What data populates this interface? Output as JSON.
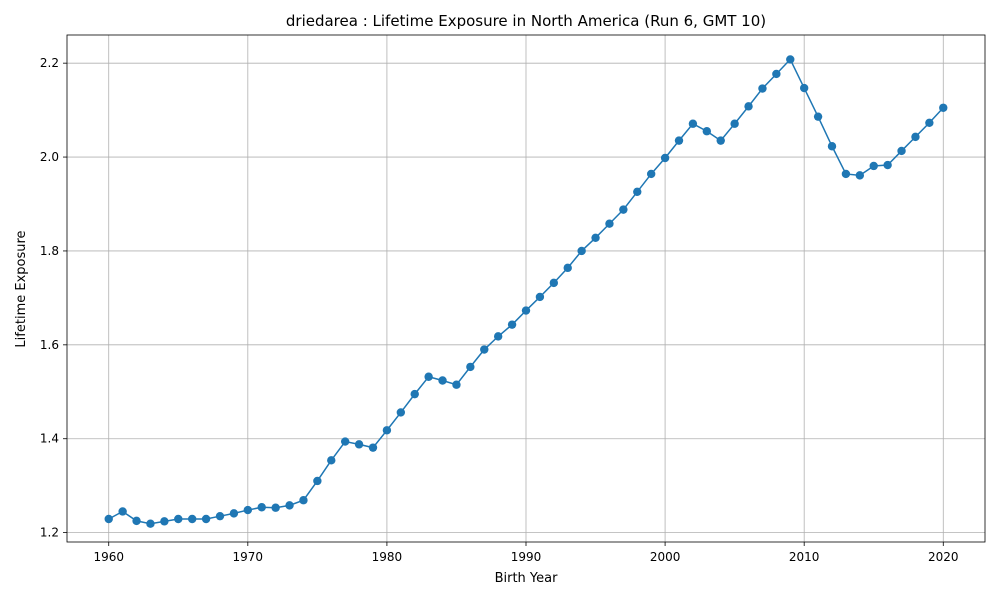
{
  "chart_data": {
    "type": "line",
    "title": "driedarea : Lifetime Exposure in North America (Run 6, GMT 10)",
    "xlabel": "Birth Year",
    "ylabel": "Lifetime Exposure",
    "xlim": [
      1957,
      2023
    ],
    "ylim": [
      1.18,
      2.26
    ],
    "xticks": [
      1960,
      1970,
      1980,
      1990,
      2000,
      2010,
      2020
    ],
    "yticks": [
      1.2,
      1.4,
      1.6,
      1.8,
      2.0,
      2.2
    ],
    "ytick_labels": [
      "1.2",
      "1.4",
      "1.6",
      "1.8",
      "2.0",
      "2.2"
    ],
    "grid": true,
    "color": "#1f77b4",
    "marker": "circle",
    "x": [
      1960,
      1961,
      1962,
      1963,
      1964,
      1965,
      1966,
      1967,
      1968,
      1969,
      1970,
      1971,
      1972,
      1973,
      1974,
      1975,
      1976,
      1977,
      1978,
      1979,
      1980,
      1981,
      1982,
      1983,
      1984,
      1985,
      1986,
      1987,
      1988,
      1989,
      1990,
      1991,
      1992,
      1993,
      1994,
      1995,
      1996,
      1997,
      1998,
      1999,
      2000,
      2001,
      2002,
      2003,
      2004,
      2005,
      2006,
      2007,
      2008,
      2009,
      2010,
      2011,
      2012,
      2013,
      2014,
      2015,
      2016,
      2017,
      2018,
      2019,
      2020
    ],
    "y": [
      1.229,
      1.245,
      1.225,
      1.219,
      1.224,
      1.229,
      1.229,
      1.229,
      1.235,
      1.241,
      1.248,
      1.254,
      1.253,
      1.258,
      1.269,
      1.31,
      1.354,
      1.394,
      1.388,
      1.381,
      1.418,
      1.456,
      1.495,
      1.532,
      1.524,
      1.515,
      1.553,
      1.59,
      1.618,
      1.643,
      1.673,
      1.702,
      1.732,
      1.764,
      1.8,
      1.828,
      1.858,
      1.888,
      1.926,
      1.964,
      1.998,
      2.035,
      2.071,
      2.055,
      2.035,
      2.071,
      2.108,
      2.146,
      2.177,
      2.208,
      2.147,
      2.086,
      2.023,
      1.964,
      1.961,
      1.981,
      1.983,
      2.013,
      2.043,
      2.073,
      2.105
    ]
  }
}
